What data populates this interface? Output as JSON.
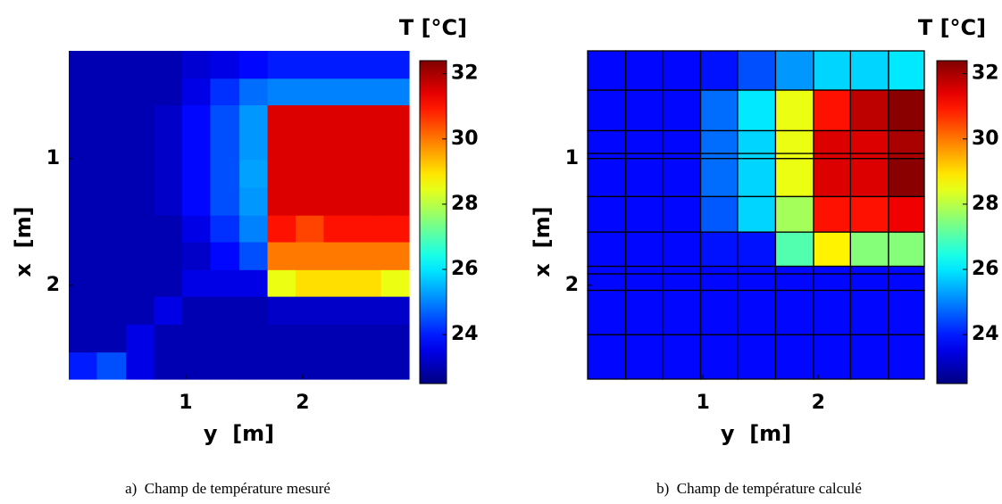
{
  "chart_data": [
    {
      "type": "heatmap",
      "colormap": "jet",
      "cell_borders": false,
      "xlabel": "y  [m]",
      "ylabel": "x  [m]",
      "colorbar_title": "T [°C]",
      "caption": "a)  Champ de température mesuré",
      "xlim": [
        0,
        2.91
      ],
      "ylim": [
        0.15,
        2.74
      ],
      "y_reversed": true,
      "xticks": [
        1,
        2
      ],
      "yticks": [
        1,
        2
      ],
      "clim": [
        22.5,
        32.4
      ],
      "cticks": [
        24,
        26,
        28,
        30,
        32
      ],
      "x_edges": [
        0,
        0.24,
        0.49,
        0.73,
        0.97,
        1.21,
        1.46,
        1.7,
        1.94,
        2.18,
        2.43,
        2.67,
        2.91
      ],
      "y_edges": [
        0.15,
        0.37,
        0.58,
        0.8,
        1.01,
        1.23,
        1.45,
        1.66,
        1.88,
        2.09,
        2.31,
        2.53,
        2.74
      ],
      "z": [
        [
          23,
          23,
          23,
          23,
          23.3,
          23.5,
          23.8,
          24,
          24,
          24,
          24,
          24
        ],
        [
          23,
          23,
          23,
          23,
          23.5,
          24.2,
          24.8,
          25,
          25,
          25,
          25,
          25
        ],
        [
          23,
          23,
          23,
          23.2,
          23.8,
          24.5,
          25.2,
          31.5,
          31.5,
          31.5,
          31.5,
          31.5
        ],
        [
          23,
          23,
          23,
          23.2,
          23.8,
          24.5,
          25.2,
          31.5,
          31.5,
          31.5,
          31.5,
          31.5
        ],
        [
          23,
          23,
          23,
          23.2,
          23.8,
          24.5,
          25.3,
          31.5,
          31.5,
          31.5,
          31.5,
          31.5
        ],
        [
          23,
          23,
          23,
          23.2,
          23.8,
          24.5,
          25.2,
          31.5,
          31.5,
          31.5,
          31.5,
          31.5
        ],
        [
          23,
          23,
          23,
          23,
          23.5,
          24.2,
          25,
          31,
          30.5,
          31,
          31,
          31
        ],
        [
          23,
          23,
          23,
          23,
          23.2,
          23.8,
          24.5,
          30,
          30,
          30,
          30,
          30
        ],
        [
          23,
          23,
          23,
          23,
          23.5,
          23.5,
          23.5,
          28.5,
          29,
          29,
          29,
          28.5
        ],
        [
          23,
          23,
          23,
          23.5,
          23,
          23,
          23,
          23.2,
          23.2,
          23.2,
          23.2,
          23.2
        ],
        [
          23,
          23,
          23.5,
          23,
          23,
          23,
          23,
          23,
          23,
          23,
          23,
          23
        ],
        [
          24,
          24.5,
          23.5,
          23,
          23,
          23,
          23,
          23,
          23,
          23,
          23,
          23
        ]
      ]
    },
    {
      "type": "heatmap",
      "colormap": "jet",
      "cell_borders": true,
      "xlabel": "y  [m]",
      "ylabel": "x  [m]",
      "colorbar_title": "T [°C]",
      "caption": "b)  Champ de température calculé",
      "xlim": [
        0,
        2.92
      ],
      "ylim": [
        0.15,
        2.74
      ],
      "y_reversed": true,
      "xticks": [
        1,
        2
      ],
      "yticks": [
        1,
        2
      ],
      "clim": [
        22.5,
        32.4
      ],
      "cticks": [
        24,
        26,
        28,
        30,
        32
      ],
      "x_edges": [
        0,
        0.33,
        0.65,
        0.98,
        1.3,
        1.63,
        1.96,
        2.28,
        2.61,
        2.92
      ],
      "y_edges": [
        0.15,
        0.46,
        0.78,
        0.96,
        1.0,
        1.3,
        1.58,
        1.85,
        1.91,
        2.04,
        2.39,
        2.74
      ],
      "z": [
        [
          23.8,
          23.8,
          23.8,
          23.9,
          24.5,
          25.2,
          25.8,
          25.8,
          26
        ],
        [
          23.8,
          23.8,
          23.8,
          24.8,
          26,
          28.5,
          31,
          31.8,
          32.3
        ],
        [
          23.8,
          23.8,
          23.8,
          24.8,
          25.8,
          28.5,
          31.5,
          31.5,
          32
        ],
        [
          23.8,
          23.8,
          23.8,
          24.8,
          25.8,
          28.5,
          31.5,
          31.5,
          32
        ],
        [
          23.8,
          23.8,
          23.8,
          24.8,
          25.8,
          28.5,
          31.5,
          31.5,
          32.3
        ],
        [
          23.8,
          23.8,
          23.8,
          24.6,
          25.8,
          27.8,
          31,
          31,
          31.3
        ],
        [
          23.8,
          23.8,
          23.8,
          23.9,
          23.9,
          27,
          28.8,
          27.5,
          27.5
        ],
        [
          23.8,
          23.8,
          23.8,
          23.8,
          23.8,
          23.8,
          23.8,
          23.8,
          23.8
        ],
        [
          23.8,
          23.8,
          23.8,
          23.8,
          23.8,
          23.8,
          23.8,
          23.8,
          23.8
        ],
        [
          23.8,
          23.8,
          23.8,
          23.8,
          23.8,
          23.8,
          23.8,
          23.8,
          23.8
        ],
        [
          23.8,
          23.8,
          23.8,
          23.8,
          23.8,
          23.8,
          23.8,
          23.8,
          23.8
        ]
      ]
    }
  ]
}
